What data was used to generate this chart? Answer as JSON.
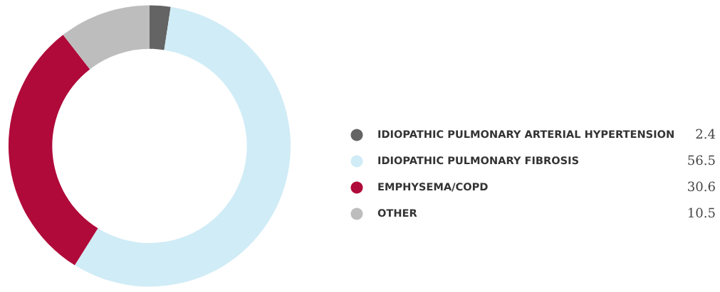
{
  "chart_data": {
    "type": "donut",
    "categories": [
      "IDIOPATHIC PULMONARY ARTERIAL HYPERTENSION",
      "IDIOPATHIC PULMONARY FIBROSIS",
      "EMPHYSEMA/COPD",
      "OTHER"
    ],
    "values": [
      2.4,
      56.5,
      30.6,
      10.5
    ],
    "colors": [
      "#646464",
      "#d0ecf6",
      "#b00a3a",
      "#bdbdbe"
    ],
    "data_labels": true,
    "legend": "right"
  }
}
